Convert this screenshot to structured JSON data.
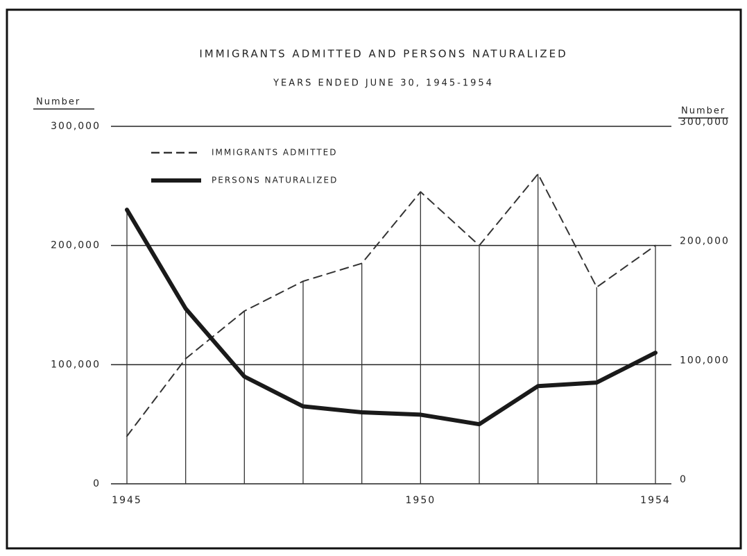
{
  "chart_data": {
    "type": "line",
    "title": "IMMIGRANTS ADMITTED AND PERSONS NATURALIZED",
    "subtitle": "YEARS ENDED JUNE 30, 1945-1954",
    "ylabel": "Number",
    "y2label": "Number",
    "x": [
      1945,
      1946,
      1947,
      1948,
      1949,
      1950,
      1951,
      1952,
      1953,
      1954
    ],
    "xlim": [
      1945,
      1954
    ],
    "xticks": [
      1945,
      1950,
      1954
    ],
    "series": [
      {
        "name": "IMMIGRANTS ADMITTED",
        "color": "#333333",
        "dash": true,
        "values": [
          40000,
          105000,
          145000,
          170000,
          185000,
          245000,
          200000,
          260000,
          165000,
          200000
        ]
      },
      {
        "name": "PERSONS NATURALIZED",
        "color": "#1a1a1a",
        "dash": false,
        "values": [
          230000,
          147000,
          90000,
          65000,
          60000,
          58000,
          50000,
          82000,
          85000,
          110000
        ]
      }
    ],
    "ylim": [
      0,
      300000
    ],
    "yticks": [
      0,
      {
        "value": 100000,
        "label": "100,000"
      },
      {
        "value": 200000,
        "label": "200,000"
      },
      {
        "value": 300000,
        "label": "300,000"
      }
    ],
    "y2lim": [
      0,
      300000
    ],
    "y2ticks": [
      0,
      {
        "value": 100000,
        "label": "100,000"
      },
      {
        "value": 200000,
        "label": "200,000"
      },
      {
        "value": 300000,
        "label": "300,000"
      }
    ],
    "grid": true,
    "legend": "upper left"
  }
}
